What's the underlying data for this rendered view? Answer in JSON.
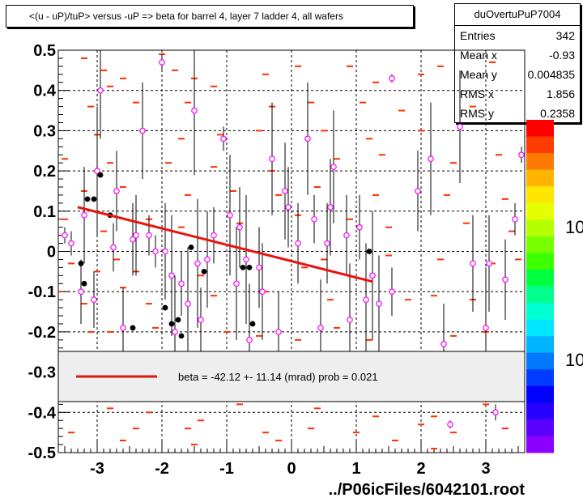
{
  "title": "<(u - uP)/tuP> versus  -uP => beta for barrel 4, layer 7 ladder 4, all wafers",
  "stats": {
    "name": "duOvertuPuP7004",
    "rows": [
      {
        "key": "Entries",
        "value": "342"
      },
      {
        "key": "Mean x",
        "value": "-0.93"
      },
      {
        "key": "Mean y",
        "value": "0.004835"
      },
      {
        "key": "RMS x",
        "value": "1.856"
      },
      {
        "key": "RMS y",
        "value": "0.2358"
      }
    ]
  },
  "footer": "../P06icFiles/6042101.root",
  "zaxis_labels": [
    "10",
    "10"
  ],
  "colors": {
    "fit_line": "#e8140c",
    "profile_points": "#ff00ff",
    "markers": "#000000",
    "histogram_bins": "#ff3000"
  },
  "chart_data": {
    "type": "scatter",
    "title": "<(u - uP)/tuP> versus  -uP => beta for barrel 4, layer 7 ladder 4, all wafers",
    "xlabel": "../P06icFiles/6042101.root",
    "ylabel": "",
    "xlim": [
      -3.6,
      3.6
    ],
    "ylim": [
      -0.5,
      0.5
    ],
    "grid": true,
    "x_ticks": [
      -3,
      -2,
      -1,
      0,
      1,
      2,
      3
    ],
    "x_tick_labels": [
      "-3",
      "-2",
      "-1",
      "0",
      "1",
      "2",
      "3"
    ],
    "y_ticks": [
      -0.5,
      -0.4,
      -0.3,
      -0.2,
      -0.1,
      0,
      0.1,
      0.2,
      0.3,
      0.4,
      0.5
    ],
    "y_tick_labels": [
      "-0.5",
      "-0.4",
      "-0.3",
      "-0.2",
      "-0.1",
      "0",
      "0.1",
      "0.2",
      "0.3",
      "0.4",
      "0.5"
    ],
    "legend": {
      "placement": "lower-center",
      "entries": [
        {
          "label": "beta =  -42.12 +- 11.14 (mrad) prob = 0.021",
          "color": "#e8140c"
        }
      ]
    },
    "fit_line": {
      "x": [
        -3.3,
        1.25
      ],
      "y": [
        0.11,
        -0.075
      ]
    },
    "series": [
      {
        "kind": "histogram_bins",
        "points": [
          [
            -3.2,
            0.48
          ],
          [
            -2.9,
            0.45
          ],
          [
            -2.8,
            0.41
          ],
          [
            -2.6,
            0.43
          ],
          [
            -2.0,
            0.49
          ],
          [
            -1.8,
            0.45
          ],
          [
            -1.5,
            0.43
          ],
          [
            -1.2,
            0.41
          ],
          [
            -0.4,
            0.44
          ],
          [
            0.1,
            0.46
          ],
          [
            0.9,
            0.46
          ],
          [
            1.3,
            0.42
          ],
          [
            2.0,
            0.44
          ],
          [
            2.3,
            0.46
          ],
          [
            3.1,
            0.47
          ],
          [
            -3.1,
            0.36
          ],
          [
            -2.4,
            0.37
          ],
          [
            -1.6,
            0.37
          ],
          [
            -0.3,
            0.36
          ],
          [
            0.3,
            0.37
          ],
          [
            1.1,
            0.37
          ],
          [
            1.7,
            0.35
          ],
          [
            2.8,
            0.36
          ],
          [
            -3.0,
            0.29
          ],
          [
            -2.3,
            0.3
          ],
          [
            -1.7,
            0.28
          ],
          [
            -1.1,
            0.29
          ],
          [
            -0.5,
            0.3
          ],
          [
            0.5,
            0.3
          ],
          [
            1.2,
            0.28
          ],
          [
            2.0,
            0.3
          ],
          [
            -3.5,
            0.23
          ],
          [
            -2.8,
            0.22
          ],
          [
            -1.9,
            0.22
          ],
          [
            -1.2,
            0.21
          ],
          [
            -0.3,
            0.2
          ],
          [
            0.7,
            0.23
          ],
          [
            1.4,
            0.24
          ],
          [
            2.5,
            0.22
          ],
          [
            3.2,
            0.24
          ],
          [
            -3.2,
            0.15
          ],
          [
            -2.6,
            0.16
          ],
          [
            -1.6,
            0.14
          ],
          [
            -0.9,
            0.15
          ],
          [
            -0.2,
            0.14
          ],
          [
            0.4,
            0.16
          ],
          [
            1.3,
            0.14
          ],
          [
            2.4,
            0.14
          ],
          [
            3.3,
            0.13
          ],
          [
            -3.5,
            0.08
          ],
          [
            -2.9,
            0.05
          ],
          [
            -2.2,
            0.08
          ],
          [
            -1.7,
            0.06
          ],
          [
            -0.8,
            0.07
          ],
          [
            0.1,
            0.09
          ],
          [
            0.9,
            0.08
          ],
          [
            1.5,
            0.06
          ],
          [
            2.7,
            0.07
          ],
          [
            3.4,
            0.05
          ],
          [
            -3.4,
            -0.03
          ],
          [
            -3.0,
            -0.05
          ],
          [
            -2.7,
            -0.02
          ],
          [
            -2.4,
            -0.05
          ],
          [
            -1.4,
            -0.06
          ],
          [
            0.2,
            -0.04
          ],
          [
            0.5,
            -0.02
          ],
          [
            1.5,
            -0.01
          ],
          [
            2.3,
            -0.02
          ],
          [
            3.1,
            -0.03
          ],
          [
            3.5,
            -0.02
          ],
          [
            -3.6,
            -0.1
          ],
          [
            -3.2,
            -0.13
          ],
          [
            -2.6,
            -0.09
          ],
          [
            -2.2,
            -0.13
          ],
          [
            -1.2,
            -0.11
          ],
          [
            -0.4,
            -0.1
          ],
          [
            0.6,
            -0.12
          ],
          [
            1.8,
            -0.12
          ],
          [
            2.2,
            -0.11
          ],
          [
            2.8,
            -0.12
          ],
          [
            -3.1,
            -0.2
          ],
          [
            -2.8,
            -0.2
          ],
          [
            -2.1,
            -0.19
          ],
          [
            -1.0,
            -0.2
          ],
          [
            -0.5,
            -0.21
          ],
          [
            0.1,
            -0.22
          ],
          [
            0.7,
            -0.19
          ],
          [
            1.2,
            -0.22
          ],
          [
            2.5,
            -0.21
          ],
          [
            3.0,
            -0.2
          ],
          [
            -2.8,
            -0.39
          ],
          [
            -2.2,
            -0.4
          ],
          [
            -1.4,
            -0.42
          ],
          [
            -0.8,
            -0.38
          ],
          [
            0.4,
            -0.39
          ],
          [
            1.3,
            -0.41
          ],
          [
            2.2,
            -0.41
          ],
          [
            3.0,
            -0.38
          ],
          [
            -3.4,
            -0.45
          ],
          [
            -2.4,
            -0.44
          ],
          [
            -1.6,
            -0.44
          ],
          [
            -0.4,
            -0.45
          ],
          [
            0.3,
            -0.44
          ],
          [
            1.0,
            -0.45
          ],
          [
            2.0,
            -0.43
          ],
          [
            2.5,
            -0.45
          ],
          [
            3.3,
            -0.44
          ],
          [
            -2.6,
            -0.47
          ],
          [
            -1.5,
            -0.48
          ],
          [
            -0.2,
            -0.47
          ],
          [
            1.6,
            -0.47
          ],
          [
            2.2,
            -0.49
          ]
        ]
      },
      {
        "kind": "profile_points",
        "points": [
          [
            -3.5,
            0.04,
            0.02
          ],
          [
            -3.4,
            0.02,
            0.03
          ],
          [
            -3.25,
            -0.1,
            0.08
          ],
          [
            -3.2,
            0.09,
            0.12
          ],
          [
            -3.05,
            -0.12,
            0.07
          ],
          [
            -3.0,
            0.2,
            0.16
          ],
          [
            -2.95,
            0.4,
            0.12
          ],
          [
            -2.75,
            0.01,
            0.06
          ],
          [
            -2.7,
            0.15,
            0.1
          ],
          [
            -2.6,
            -0.19,
            0.1
          ],
          [
            -2.45,
            0.03,
            0.09
          ],
          [
            -2.4,
            0.04,
            0.1
          ],
          [
            -2.3,
            0.3,
            0.12
          ],
          [
            -2.2,
            0.04,
            0.05
          ],
          [
            -2.0,
            0.47,
            0.02
          ],
          [
            -1.95,
            0.0,
            0.12
          ],
          [
            -1.85,
            -0.06,
            0.15
          ],
          [
            -1.8,
            -0.2,
            0.14
          ],
          [
            -1.7,
            -0.08,
            0.08
          ],
          [
            -1.6,
            -0.13,
            0.14
          ],
          [
            -1.5,
            0.35,
            0.16
          ],
          [
            -1.45,
            -0.03,
            0.16
          ],
          [
            -1.4,
            -0.17,
            0.08
          ],
          [
            -1.3,
            -0.02,
            0.12
          ],
          [
            -1.2,
            0.04,
            0.07
          ],
          [
            -1.05,
            0.28,
            0.03
          ],
          [
            -0.95,
            0.09,
            0.15
          ],
          [
            -0.85,
            -0.08,
            0.14
          ],
          [
            -0.8,
            0.06,
            0.1
          ],
          [
            -0.7,
            -0.02,
            0.16
          ],
          [
            -0.65,
            -0.22,
            0.14
          ],
          [
            -0.5,
            -0.04,
            0.1
          ],
          [
            -0.45,
            -0.1,
            0.12
          ],
          [
            -0.3,
            0.23,
            0.14
          ],
          [
            -0.2,
            -0.2,
            0.1
          ],
          [
            -0.1,
            0.15,
            0.12
          ],
          [
            -0.05,
            0.11,
            0.1
          ],
          [
            0.1,
            0.02,
            0.1
          ],
          [
            0.25,
            0.28,
            0.14
          ],
          [
            0.35,
            0.08,
            0.06
          ],
          [
            0.45,
            -0.19,
            0.12
          ],
          [
            0.55,
            0.02,
            0.1
          ],
          [
            0.6,
            0.11,
            0.12
          ],
          [
            0.65,
            0.21,
            0.14
          ],
          [
            0.85,
            0.04,
            0.1
          ],
          [
            0.9,
            -0.17,
            0.14
          ],
          [
            1.05,
            0.06,
            0.08
          ],
          [
            1.15,
            -0.12,
            0.14
          ],
          [
            1.25,
            -0.06,
            0.16
          ],
          [
            1.35,
            -0.13,
            0.12
          ],
          [
            1.55,
            0.43,
            0.01
          ],
          [
            1.55,
            -0.1,
            0.06
          ],
          [
            1.95,
            0.15,
            0.1
          ],
          [
            2.15,
            0.23,
            0.14
          ],
          [
            2.35,
            -0.23,
            0.1
          ],
          [
            2.45,
            -0.43,
            0.01
          ],
          [
            2.6,
            0.31,
            0.14
          ],
          [
            2.8,
            -0.03,
            0.12
          ],
          [
            3.0,
            -0.19,
            0.15
          ],
          [
            3.05,
            -0.03,
            0.12
          ],
          [
            3.15,
            -0.4,
            0.02
          ],
          [
            3.3,
            -0.07,
            0.1
          ],
          [
            3.45,
            0.08,
            0.04
          ],
          [
            3.55,
            0.24,
            0.02
          ],
          [
            -2.1,
            0.0,
            0.04
          ]
        ]
      },
      {
        "kind": "markers",
        "points": [
          [
            -3.15,
            0.13
          ],
          [
            -3.05,
            0.13
          ],
          [
            -2.95,
            0.19
          ],
          [
            -2.8,
            0.09
          ],
          [
            -3.25,
            -0.03
          ],
          [
            -3.2,
            -0.08
          ],
          [
            -2.45,
            -0.19
          ],
          [
            -1.95,
            -0.14
          ],
          [
            -1.85,
            -0.18
          ],
          [
            -1.75,
            -0.17
          ],
          [
            -1.7,
            -0.21
          ],
          [
            -1.55,
            0.01
          ],
          [
            -1.35,
            -0.05
          ],
          [
            -0.75,
            -0.04
          ],
          [
            -0.65,
            -0.04
          ],
          [
            -0.6,
            -0.18
          ],
          [
            1.2,
            0.0
          ]
        ]
      }
    ]
  }
}
